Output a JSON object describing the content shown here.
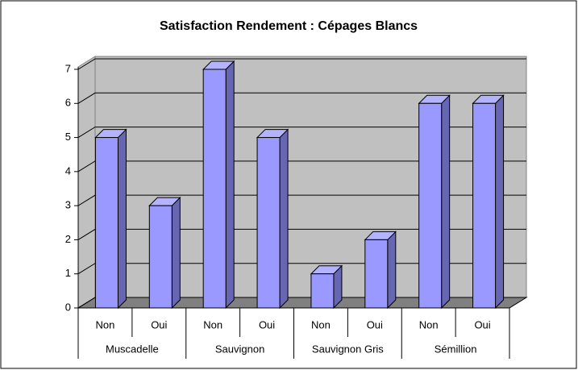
{
  "chart_data": {
    "type": "bar3d",
    "title": "Satisfaction Rendement : Cépages Blancs",
    "categories": [
      "Non",
      "Oui",
      "Non",
      "Oui",
      "Non",
      "Oui",
      "Non",
      "Oui"
    ],
    "groups": [
      "Muscadelle",
      "Sauvignon",
      "Sauvignon Gris",
      "Sémillion"
    ],
    "values": [
      5,
      3,
      7,
      5,
      1,
      2,
      6,
      6
    ],
    "color": "#9999ff",
    "ylim": [
      0,
      7
    ],
    "yticks": [
      0,
      1,
      2,
      3,
      4,
      5,
      6,
      7
    ],
    "grid": true
  }
}
